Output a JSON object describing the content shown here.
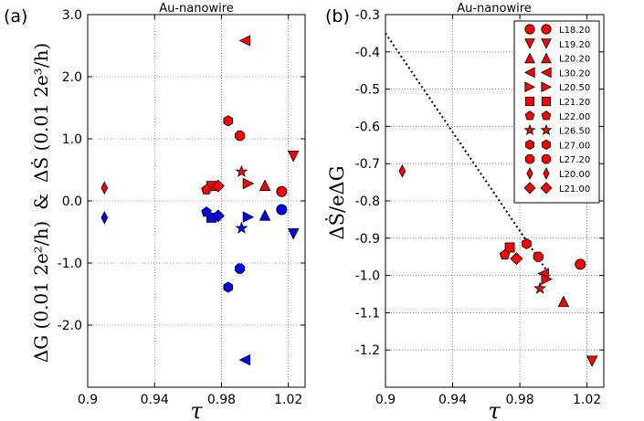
{
  "chart_data": [
    {
      "type": "scatter",
      "panel_label": "(a)",
      "title": "Au-nanowire",
      "xlabel": "τ",
      "ylabel_left": "ΔG (0.01 2e²/h)",
      "ylabel_amp": "&",
      "ylabel_right": "ΔṠ (0.01 2e³/h)",
      "xlim": [
        0.9,
        1.03
      ],
      "ylim": [
        -3.0,
        3.0
      ],
      "xticks": [
        0.9,
        0.94,
        0.98,
        1.02
      ],
      "xtick_labels": [
        "0.9",
        "0.94",
        "0.98",
        "1.02"
      ],
      "yticks": [
        -2,
        -1,
        0,
        1,
        2,
        3
      ],
      "ytick_labels": [
        "-2.0",
        "-1.0",
        "0.0",
        "1.0",
        "2.0",
        "3.0"
      ],
      "grid": true,
      "series": [
        {
          "color": "#ff0000",
          "points": [
            {
              "x": 1.016,
              "y": 0.15,
              "m": "circle"
            },
            {
              "x": 1.023,
              "y": 0.72,
              "m": "triangle-down"
            },
            {
              "x": 1.006,
              "y": 0.25,
              "m": "triangle-up"
            },
            {
              "x": 0.994,
              "y": 2.58,
              "m": "triangle-left"
            },
            {
              "x": 0.996,
              "y": 0.28,
              "m": "triangle-right"
            },
            {
              "x": 0.974,
              "y": 0.24,
              "m": "square"
            },
            {
              "x": 0.971,
              "y": 0.18,
              "m": "pentagon"
            },
            {
              "x": 0.992,
              "y": 0.47,
              "m": "star"
            },
            {
              "x": 0.984,
              "y": 1.29,
              "m": "hexagon"
            },
            {
              "x": 0.991,
              "y": 1.05,
              "m": "octagon"
            },
            {
              "x": 0.91,
              "y": 0.21,
              "m": "thin-diamond"
            },
            {
              "x": 0.978,
              "y": 0.24,
              "m": "diamond"
            }
          ]
        },
        {
          "color": "#0000ff",
          "points": [
            {
              "x": 1.016,
              "y": -0.14,
              "m": "circle"
            },
            {
              "x": 1.023,
              "y": -0.53,
              "m": "triangle-down"
            },
            {
              "x": 1.006,
              "y": -0.23,
              "m": "triangle-up"
            },
            {
              "x": 0.994,
              "y": -2.56,
              "m": "triangle-left"
            },
            {
              "x": 0.996,
              "y": -0.26,
              "m": "triangle-right"
            },
            {
              "x": 0.974,
              "y": -0.27,
              "m": "square"
            },
            {
              "x": 0.971,
              "y": -0.18,
              "m": "pentagon"
            },
            {
              "x": 0.992,
              "y": -0.44,
              "m": "star"
            },
            {
              "x": 0.984,
              "y": -1.39,
              "m": "hexagon"
            },
            {
              "x": 0.991,
              "y": -1.09,
              "m": "octagon"
            },
            {
              "x": 0.91,
              "y": -0.27,
              "m": "thin-diamond"
            },
            {
              "x": 0.978,
              "y": -0.24,
              "m": "diamond"
            }
          ]
        }
      ]
    },
    {
      "type": "scatter",
      "panel_label": "(b)",
      "title": "Au-nanowire",
      "xlabel": "τ",
      "ylabel": "ΔṠ/eΔG",
      "xlim": [
        0.9,
        1.03
      ],
      "ylim": [
        -1.3,
        -0.3
      ],
      "xticks": [
        0.9,
        0.94,
        0.98,
        1.02
      ],
      "xtick_labels": [
        "0.9",
        "0.94",
        "0.98",
        "1.02"
      ],
      "yticks": [
        -1.2,
        -1.1,
        -1.0,
        -0.9,
        -0.8,
        -0.7,
        -0.6,
        -0.5,
        -0.4,
        -0.3
      ],
      "ytick_labels": [
        "-1.2",
        "-1.1",
        "-1.0",
        "-0.9",
        "-0.8",
        "-0.7",
        "-0.6",
        "-0.5",
        "-0.4",
        "-0.3"
      ],
      "grid": true,
      "legend_position": "top-right",
      "dotted_line": {
        "x": [
          0.9,
          0.998
        ],
        "y": [
          -0.35,
          -1.0
        ]
      },
      "series": [
        {
          "name": "L18.20",
          "marker": "circle",
          "color": "#ff0000",
          "x": 1.016,
          "y": -0.97
        },
        {
          "name": "L19.20",
          "marker": "triangle-down",
          "color": "#ff0000",
          "x": 1.023,
          "y": -1.23
        },
        {
          "name": "L20.20",
          "marker": "triangle-up",
          "color": "#ff0000",
          "x": 1.006,
          "y": -1.07
        },
        {
          "name": "L30.20",
          "marker": "triangle-left",
          "color": "#ff0000",
          "x": 0.994,
          "y": -0.995
        },
        {
          "name": "L20.50",
          "marker": "triangle-right",
          "color": "#ff0000",
          "x": 0.996,
          "y": -1.01
        },
        {
          "name": "L21.20",
          "marker": "square",
          "color": "#ff0000",
          "x": 0.974,
          "y": -0.925
        },
        {
          "name": "L22.00",
          "marker": "pentagon",
          "color": "#ff0000",
          "x": 0.971,
          "y": -0.945
        },
        {
          "name": "L26.50",
          "marker": "star",
          "color": "#ff0000",
          "x": 0.992,
          "y": -1.035
        },
        {
          "name": "L27.00",
          "marker": "hexagon",
          "color": "#ff0000",
          "x": 0.984,
          "y": -0.915
        },
        {
          "name": "L27.20",
          "marker": "octagon",
          "color": "#ff0000",
          "x": 0.991,
          "y": -0.95
        },
        {
          "name": "L20.00",
          "marker": "thin-diamond",
          "color": "#ff0000",
          "x": 0.91,
          "y": -0.72
        },
        {
          "name": "L21.00",
          "marker": "diamond",
          "color": "#ff0000",
          "x": 0.978,
          "y": -0.955
        }
      ]
    }
  ]
}
